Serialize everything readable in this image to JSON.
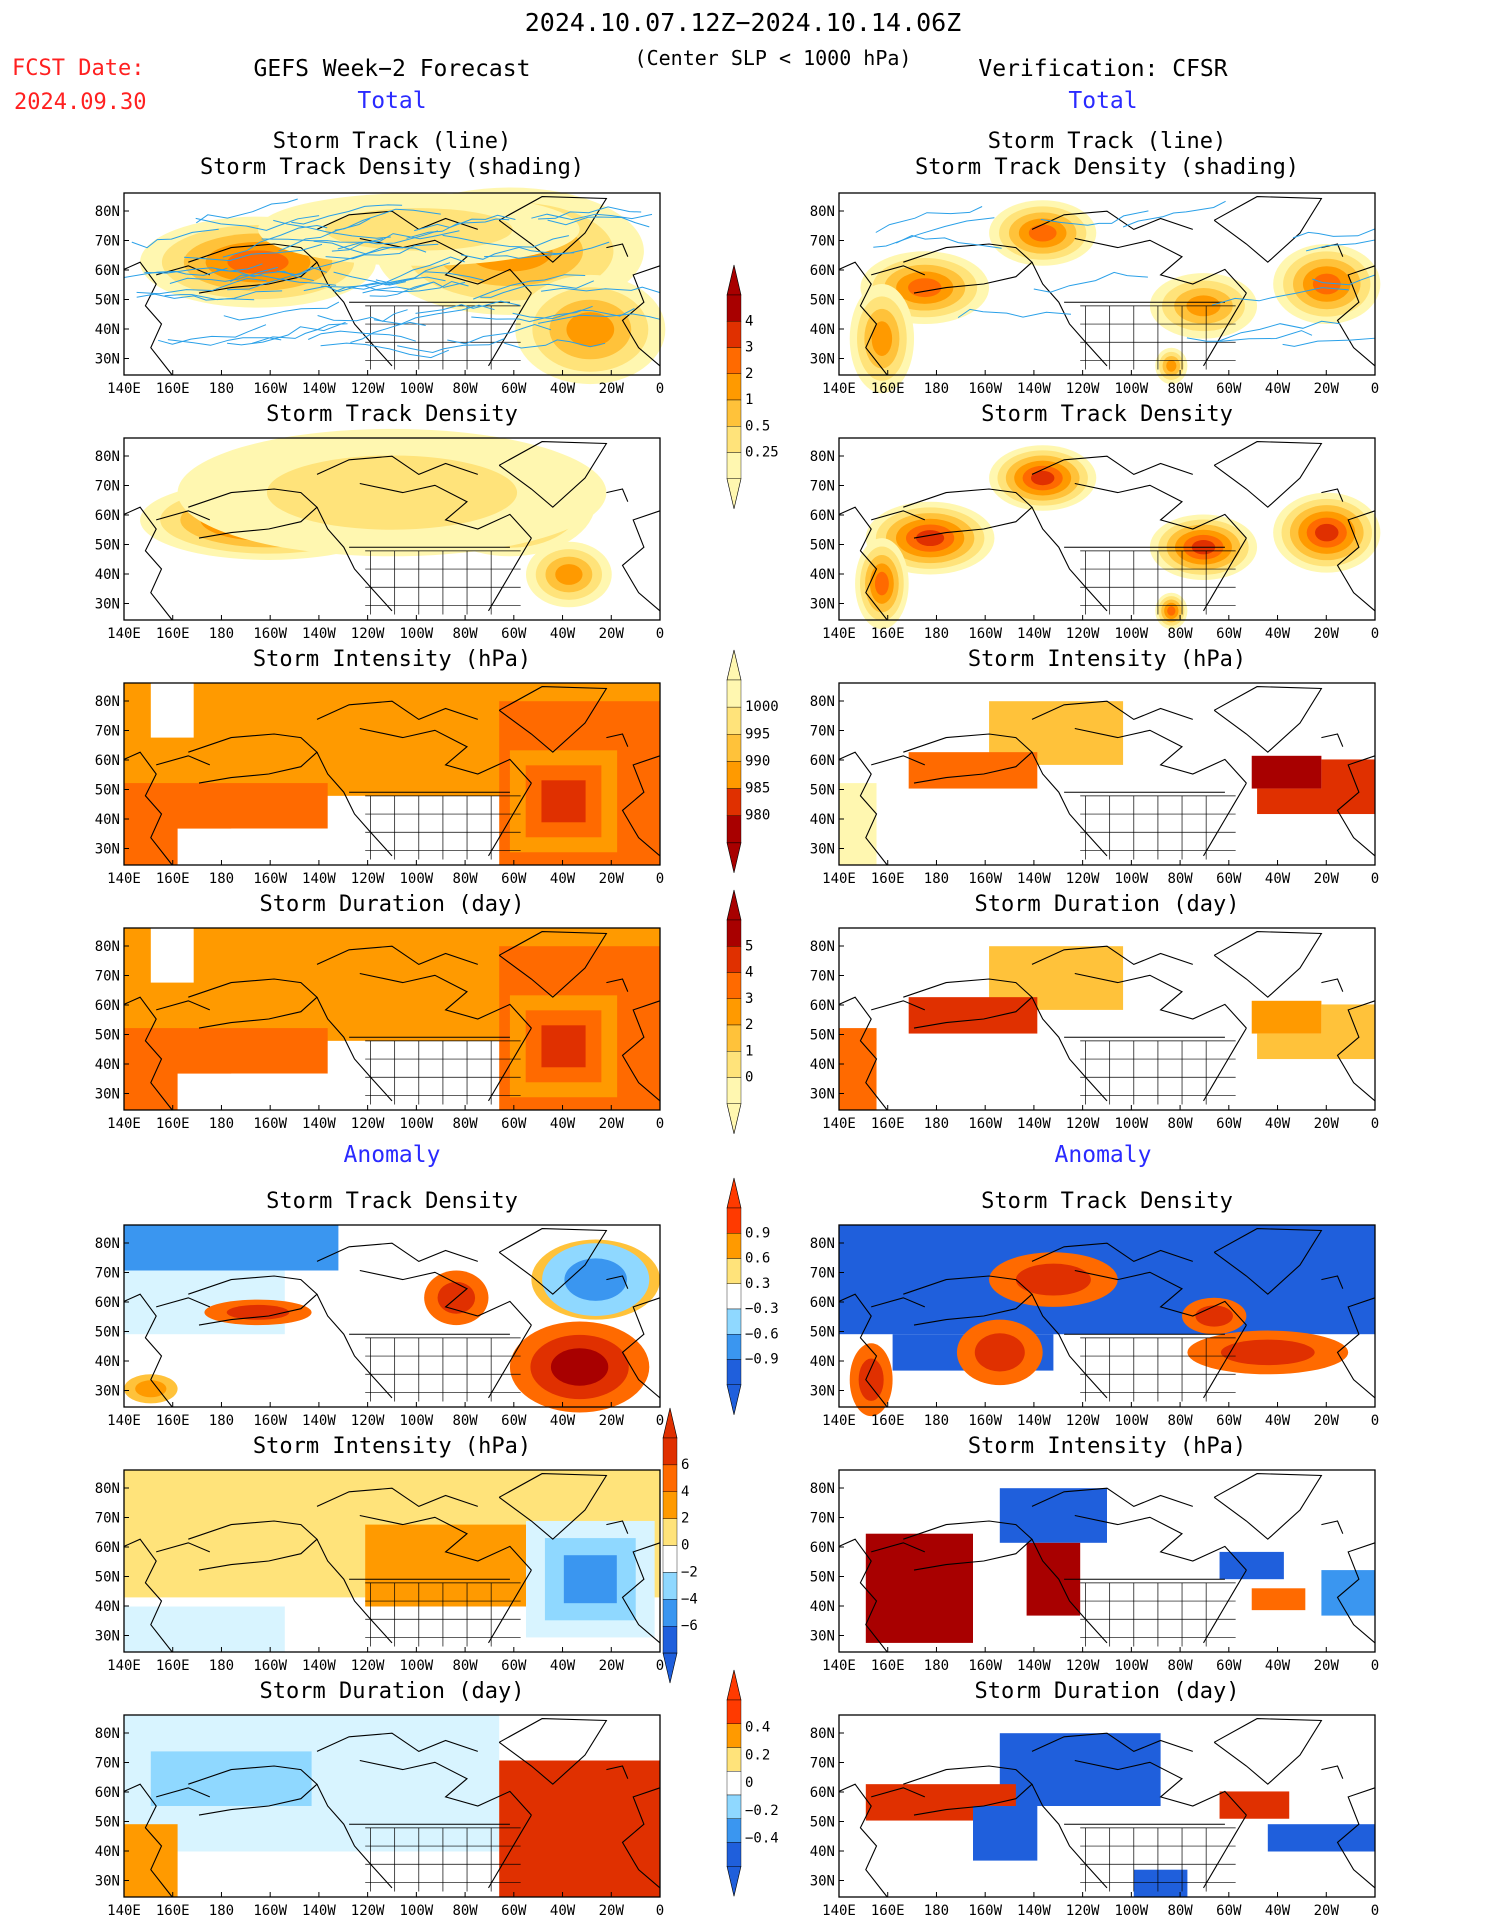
{
  "header": {
    "period": "2024.10.07.12Z−2024.10.14.06Z",
    "criterion": "(Center SLP < 1000 hPa)",
    "fcst_label": "FCST Date:",
    "fcst_date": "2024.09.30",
    "left_title": "GEFS Week−2 Forecast",
    "right_title": "Verification: CFSR",
    "total_label": "Total",
    "anomaly_label": "Anomaly"
  },
  "axis": {
    "lon_ticks": [
      "140E",
      "160E",
      "180",
      "160W",
      "140W",
      "120W",
      "100W",
      "80W",
      "60W",
      "40W",
      "20W",
      "0"
    ],
    "lat_ticks": [
      "80N",
      "70N",
      "60N",
      "50N",
      "40N",
      "30N"
    ]
  },
  "panels": {
    "track_line_1": "Storm Track (line)",
    "track_line_2": "Storm Track Density (shading)",
    "density": "Storm Track Density",
    "intensity": "Storm Intensity (hPa)",
    "duration": "Storm Duration (day)"
  },
  "colorbars": {
    "density_total": [
      "4",
      "3",
      "2",
      "1",
      "0.5",
      "0.25"
    ],
    "intensity_total": [
      "1000",
      "995",
      "990",
      "985",
      "980"
    ],
    "duration_total": [
      "5",
      "4",
      "3",
      "2",
      "1",
      "0"
    ],
    "density_anom": [
      "0.9",
      "0.6",
      "0.3",
      "−0.3",
      "−0.6",
      "−0.9"
    ],
    "intensity_anom": [
      "6",
      "4",
      "2",
      "0",
      "−2",
      "−4",
      "−6"
    ],
    "duration_anom": [
      "0.4",
      "0.2",
      "0",
      "−0.2",
      "−0.4"
    ]
  },
  "colors": {
    "warm": [
      "#fff7b0",
      "#ffe37a",
      "#ffc23a",
      "#ff9a00",
      "#ff6a00",
      "#e03000",
      "#a80000"
    ],
    "cool": [
      "#d8f4ff",
      "#8fd8ff",
      "#3a96f0",
      "#1f5fdc"
    ],
    "track_lines": "#2aa0e8"
  }
}
